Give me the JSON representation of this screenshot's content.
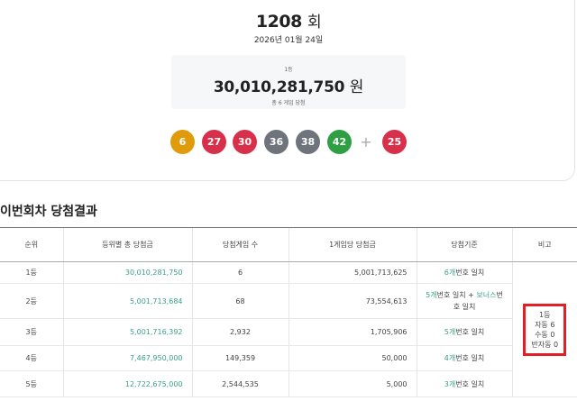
{
  "draw": {
    "round": "1208",
    "round_unit": "회",
    "date": "2026년 01월 24일",
    "first_prize": {
      "rank": "1등",
      "amount": "30,010,281,750",
      "unit": "원",
      "winners": "총 6 게임 당첨"
    },
    "numbers": [
      {
        "n": "6",
        "color": "#e09a0a"
      },
      {
        "n": "27",
        "color": "#d8304a"
      },
      {
        "n": "30",
        "color": "#d8304a"
      },
      {
        "n": "36",
        "color": "#6e737c"
      },
      {
        "n": "38",
        "color": "#6e737c"
      },
      {
        "n": "42",
        "color": "#2ea043"
      }
    ],
    "plus": "+",
    "bonus": {
      "n": "25",
      "color": "#d8304a"
    }
  },
  "results": {
    "title": "이번회차 당첨결과",
    "headers": [
      "순위",
      "등위별 총 당첨금",
      "당첨게임 수",
      "1게임당 당첨금",
      "당첨기준",
      "비고"
    ],
    "rows": [
      {
        "rank": "1등",
        "total": "30,010,281,750",
        "games": "6",
        "per_game": "5,001,713,625",
        "crit_hl": "6개",
        "crit": "번호 일치"
      },
      {
        "rank": "2등",
        "total": "5,001,713,684",
        "games": "68",
        "per_game": "73,554,613",
        "crit_hl": "5개",
        "crit": "번호 일치 + ",
        "crit_hl2": "보너스",
        "crit2": "번호 일치"
      },
      {
        "rank": "3등",
        "total": "5,001,716,392",
        "games": "2,932",
        "per_game": "1,705,906",
        "crit_hl": "5개",
        "crit": "번호 일치"
      },
      {
        "rank": "4등",
        "total": "7,467,950,000",
        "games": "149,359",
        "per_game": "50,000",
        "crit_hl": "4개",
        "crit": "번호 일치"
      },
      {
        "rank": "5등",
        "total": "12,722,675,000",
        "games": "2,544,535",
        "per_game": "5,000",
        "crit_hl": "3개",
        "crit": "번호 일치"
      }
    ],
    "note": {
      "rank": "1등",
      "auto": "자동 6",
      "manual": "수동 0",
      "semi": "반자동 0"
    }
  }
}
